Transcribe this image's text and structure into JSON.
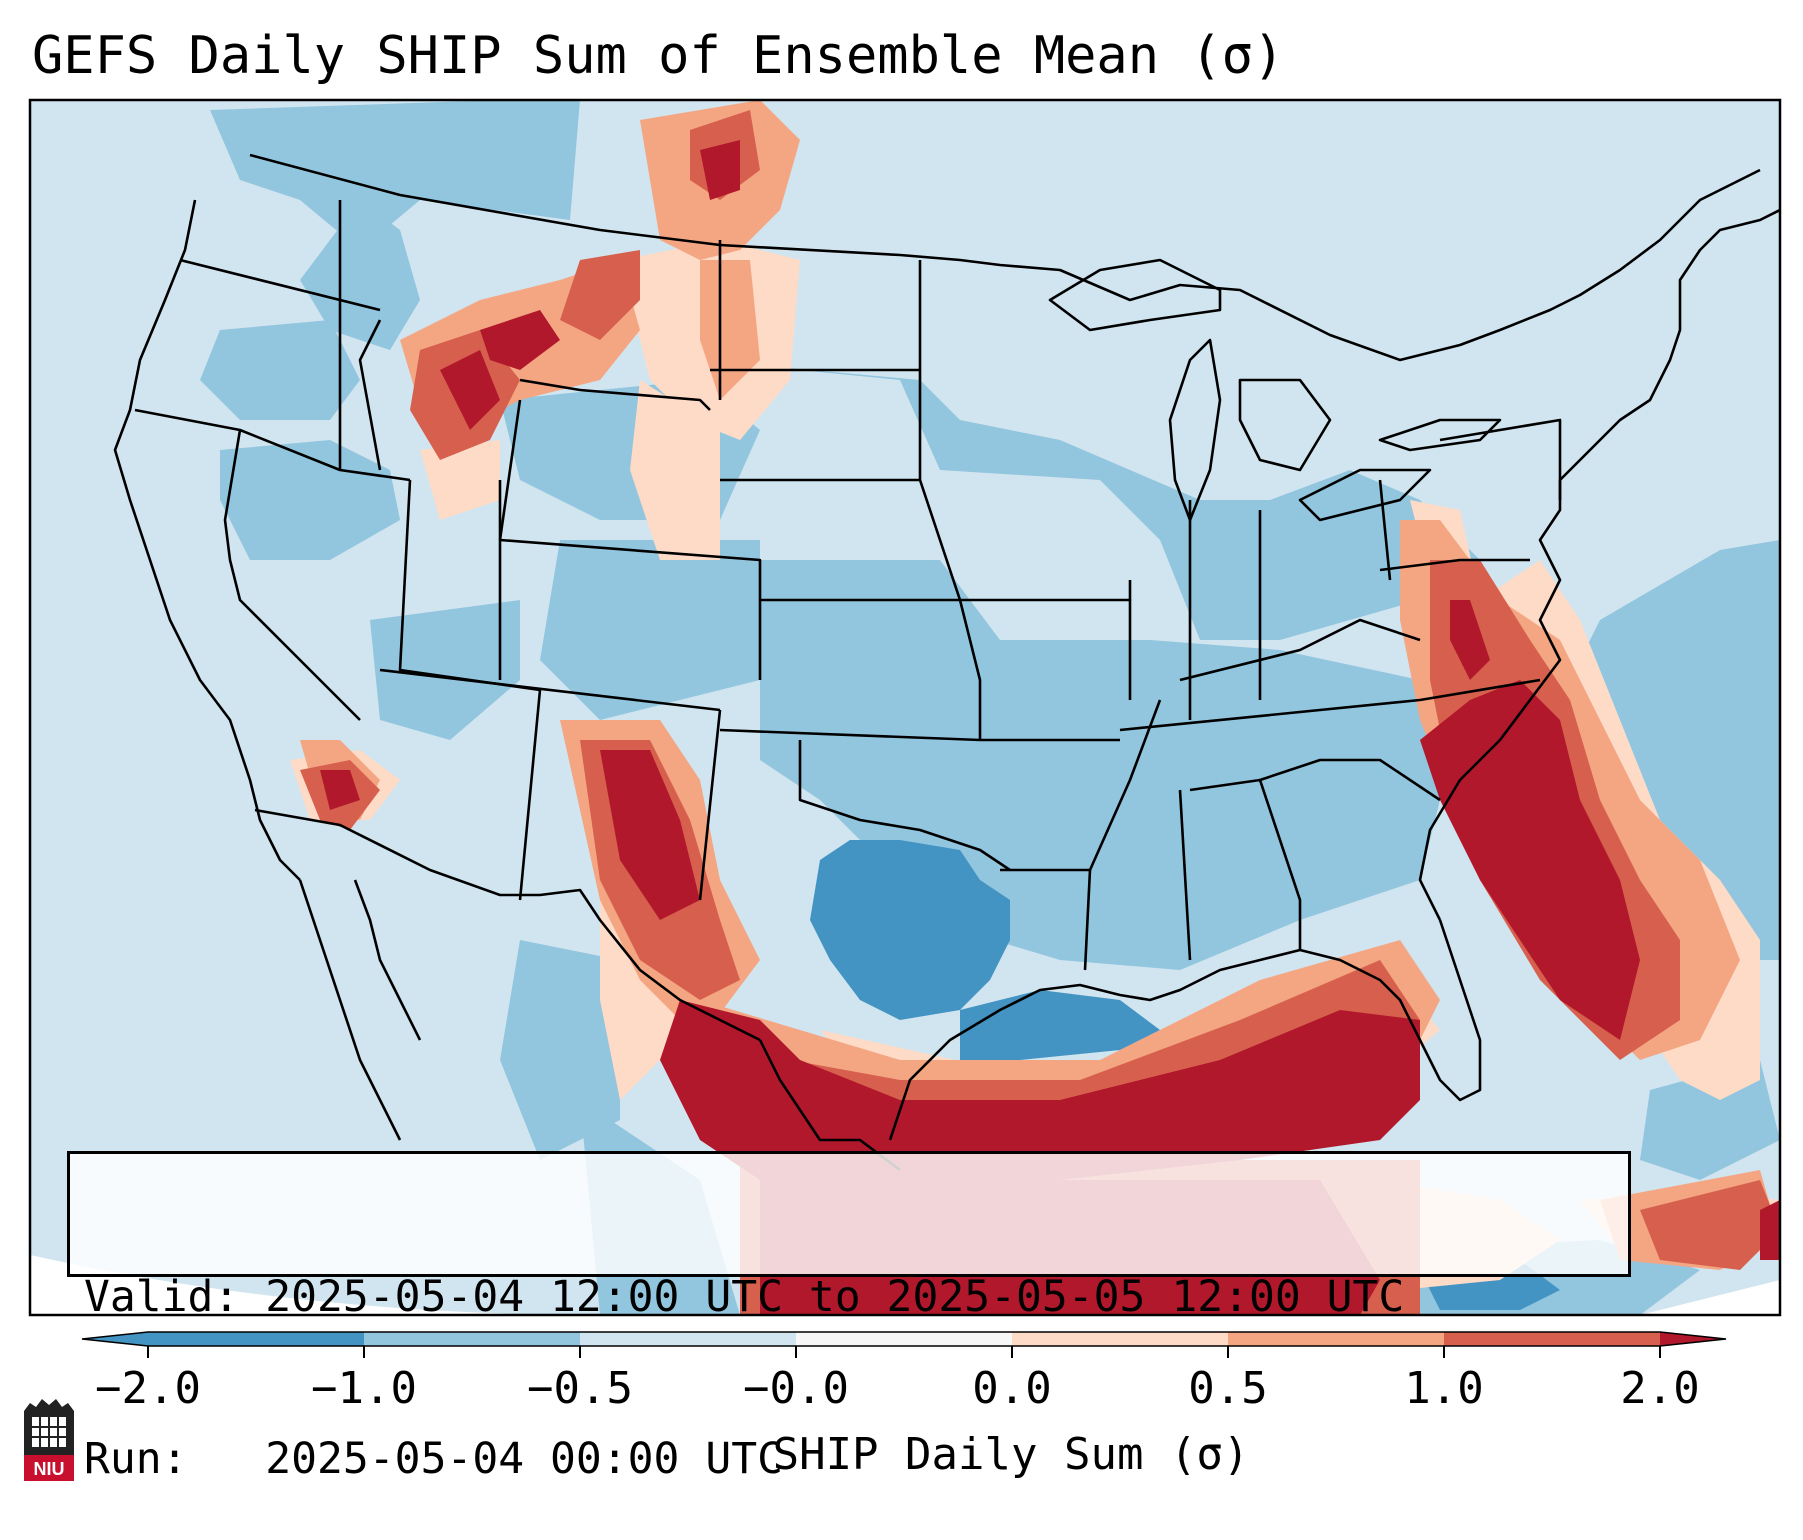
{
  "title": "GEFS Daily SHIP Sum of Ensemble Mean (σ)",
  "info": {
    "valid_label": "Valid:",
    "valid_value": "2025-05-04 12:00 UTC to 2025-05-05 12:00 UTC",
    "run_label": "Run:",
    "run_value": "2025-05-04 00:00 UTC"
  },
  "colorbar": {
    "label": "SHIP Daily Sum (σ)",
    "tick_labels": [
      "−2.0",
      "−1.0",
      "−0.5",
      "−0.0",
      "0.0",
      "0.5",
      "1.0",
      "2.0"
    ],
    "colors": [
      "#4393c3",
      "#92c5de",
      "#d1e5f0",
      "#f7f7f7",
      "#fddbc7",
      "#f4a582",
      "#d6604d",
      "#b2182b"
    ],
    "extend": "both"
  },
  "map": {
    "background_color": "#d1e5f0",
    "border_color": "#000000",
    "region": "Contiguous United States"
  },
  "logo": {
    "text": "NIU",
    "color": "#c8102e"
  }
}
